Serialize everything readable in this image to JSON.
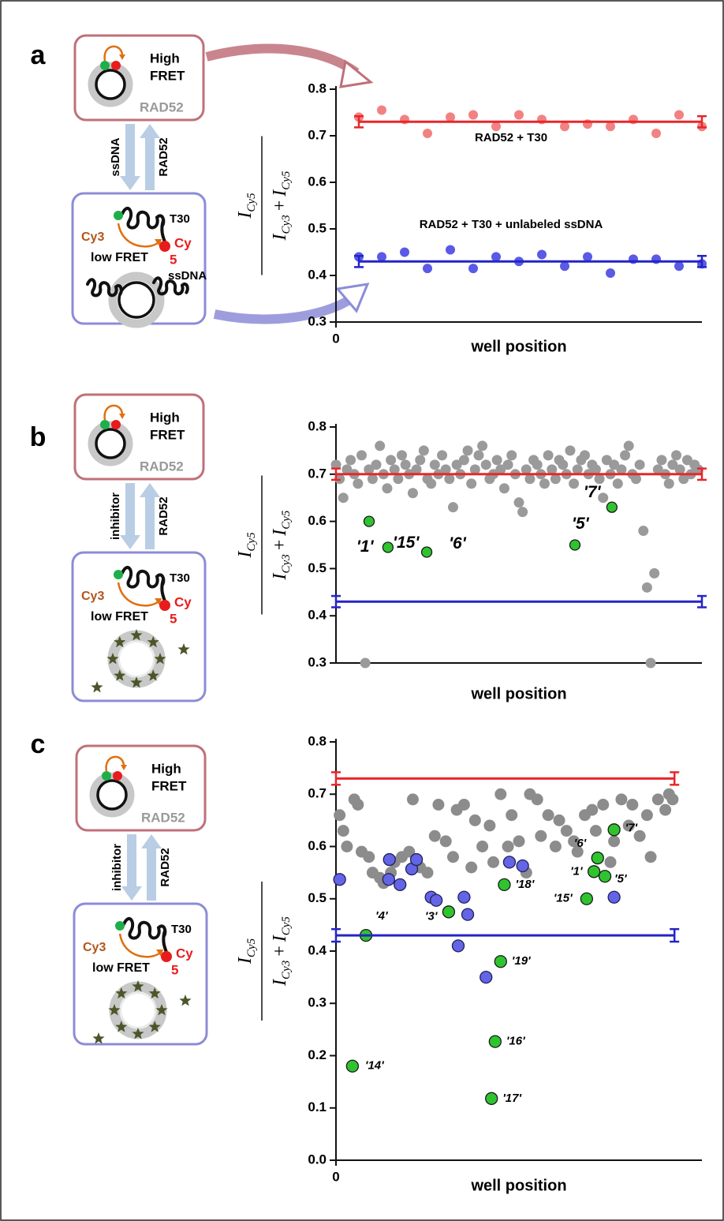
{
  "schematics": [
    {
      "top": {
        "line1": "High",
        "line2": "FRET",
        "protein": "RAD52"
      },
      "arrow_down": "ssDNA",
      "arrow_up": "RAD52",
      "bottom": {
        "strand": "T30",
        "donor": "Cy3",
        "acceptor": [
          "Cy",
          "5"
        ],
        "state": "low FRET",
        "extra": "ssDNA"
      }
    },
    {
      "top": {
        "line1": "High",
        "line2": "FRET",
        "protein": "RAD52"
      },
      "arrow_down": "inhibitor",
      "arrow_up": "RAD52",
      "bottom": {
        "strand": "T30",
        "donor": "Cy3",
        "acceptor": [
          "Cy",
          "5"
        ],
        "state": "low FRET"
      }
    },
    {
      "top": {
        "line1": "High",
        "line2": "FRET",
        "protein": "RAD52"
      },
      "arrow_down": "inhibitor",
      "arrow_up": "RAD52",
      "bottom": {
        "strand": "T30",
        "donor": "Cy3",
        "acceptor": [
          "Cy",
          "5"
        ],
        "state": "low FRET"
      }
    }
  ],
  "chart_data": [
    {
      "type": "scatter",
      "panel": "a",
      "xlabel": "well position",
      "ylabel": {
        "numerator": [
          "I",
          "Cy5"
        ],
        "denominator": [
          "I",
          "Cy3",
          "+",
          "I",
          "Cy5"
        ]
      },
      "xlim": [
        0,
        100
      ],
      "xticks": [
        0
      ],
      "ylim": [
        0.3,
        0.8
      ],
      "yticks": [
        0.3,
        0.4,
        0.5,
        0.6,
        0.7,
        0.8
      ],
      "series": [
        {
          "color": "#f28282",
          "x": [
            6.25,
            12.5,
            18.75,
            25,
            31.25,
            37.5,
            43.75,
            50,
            56.25,
            62.5,
            68.75,
            75,
            81.25,
            87.5,
            93.75,
            100
          ],
          "values": [
            0.74,
            0.755,
            0.735,
            0.705,
            0.74,
            0.745,
            0.72,
            0.745,
            0.735,
            0.72,
            0.725,
            0.72,
            0.735,
            0.705,
            0.745,
            0.72
          ]
        },
        {
          "color": "#5a5ae6",
          "x": [
            6.25,
            12.5,
            18.75,
            25,
            31.25,
            37.5,
            43.75,
            50,
            56.25,
            62.5,
            68.75,
            75,
            81.25,
            87.5,
            93.75,
            100
          ],
          "values": [
            0.44,
            0.44,
            0.45,
            0.415,
            0.455,
            0.415,
            0.44,
            0.43,
            0.445,
            0.42,
            0.44,
            0.405,
            0.435,
            0.435,
            0.42,
            0.425
          ]
        }
      ],
      "reference_lines": [
        {
          "color": "#e8262a",
          "value": 0.73,
          "error": 0.012,
          "x": [
            6.25,
            100
          ]
        },
        {
          "color": "#2424c8",
          "value": 0.43,
          "error": 0.012,
          "x": [
            6.25,
            100
          ]
        }
      ],
      "annotations": [
        "RAD52 + T30",
        "RAD52 + T30 + unlabeled ssDNA"
      ]
    },
    {
      "type": "scatter",
      "panel": "b",
      "xlabel": "well position",
      "ylabel": {
        "numerator": [
          "I",
          "Cy5"
        ],
        "denominator": [
          "I",
          "Cy3",
          "+",
          "I",
          "Cy5"
        ]
      },
      "xlim": [
        0,
        100
      ],
      "ylim": [
        0.3,
        0.8
      ],
      "yticks": [
        0.3,
        0.4,
        0.5,
        0.6,
        0.7,
        0.8
      ],
      "series": [
        {
          "color": "#9a9a9a",
          "x": [
            0,
            1,
            2,
            3,
            4,
            5,
            6,
            7,
            8,
            9,
            10,
            11,
            12,
            13,
            14,
            15,
            16,
            17,
            18,
            19,
            20,
            21,
            22,
            23,
            24,
            25,
            26,
            27,
            28,
            29,
            30,
            31,
            32,
            33,
            34,
            35,
            36,
            37,
            38,
            39,
            40,
            41,
            42,
            43,
            44,
            45,
            46,
            47,
            48,
            49,
            50,
            51,
            52,
            53,
            54,
            55,
            56,
            57,
            58,
            59,
            60,
            61,
            62,
            63,
            64,
            65,
            66,
            67,
            68,
            69,
            70,
            71,
            72,
            73,
            74,
            75,
            76,
            77,
            78,
            79,
            80,
            81,
            82,
            83,
            84,
            85,
            86,
            87,
            88,
            89,
            90,
            91,
            92,
            93,
            94,
            95,
            96,
            97,
            98,
            99
          ],
          "values": [
            0.72,
            0.69,
            0.65,
            0.71,
            0.73,
            0.7,
            0.68,
            0.74,
            0.3,
            0.71,
            0.69,
            0.72,
            0.76,
            0.7,
            0.67,
            0.73,
            0.71,
            0.69,
            0.74,
            0.72,
            0.7,
            0.66,
            0.71,
            0.73,
            0.75,
            0.69,
            0.68,
            0.72,
            0.7,
            0.74,
            0.71,
            0.69,
            0.63,
            0.72,
            0.7,
            0.73,
            0.75,
            0.68,
            0.71,
            0.74,
            0.76,
            0.72,
            0.69,
            0.7,
            0.73,
            0.71,
            0.67,
            0.72,
            0.74,
            0.7,
            0.64,
            0.62,
            0.71,
            0.69,
            0.73,
            0.72,
            0.7,
            0.68,
            0.74,
            0.71,
            0.69,
            0.73,
            0.72,
            0.7,
            0.75,
            0.68,
            0.71,
            0.73,
            0.74,
            0.7,
            0.72,
            0.71,
            0.69,
            0.65,
            0.73,
            0.7,
            0.72,
            0.68,
            0.71,
            0.74,
            0.76,
            0.7,
            0.69,
            0.72,
            0.58,
            0.46,
            0.3,
            0.49,
            0.71,
            0.73,
            0.7,
            0.68,
            0.72,
            0.74,
            0.71,
            0.69,
            0.73,
            0.7,
            0.72,
            0.71
          ]
        },
        {
          "color": "#2fc42f",
          "outline": "#1a1a1a",
          "x": [
            9.05,
            14.2,
            24.8,
            65.3,
            75.4
          ],
          "values": [
            0.6,
            0.545,
            0.535,
            0.55,
            0.63
          ],
          "point_labels": [
            "'15'",
            "'1'",
            "'6'",
            "'5'",
            "'7'"
          ]
        }
      ],
      "reference_lines": [
        {
          "color": "#e8262a",
          "value": 0.7,
          "error": 0.012,
          "x": [
            0,
            100
          ]
        },
        {
          "color": "#2424c8",
          "value": 0.43,
          "error": 0.012,
          "x": [
            0,
            100
          ]
        }
      ]
    },
    {
      "type": "scatter",
      "panel": "c",
      "xlabel": "well position",
      "ylabel": {
        "numerator": [
          "I",
          "Cy5"
        ],
        "denominator": [
          "I",
          "Cy3",
          "+",
          "I",
          "Cy5"
        ]
      },
      "xlim": [
        0,
        100
      ],
      "xticks": [
        0
      ],
      "ylim": [
        0,
        0.8
      ],
      "yticks": [
        {
          "value": 0,
          "label": "0.0"
        },
        0.1,
        0.2,
        0.3,
        0.4,
        0.5,
        0.6,
        0.7,
        0.8
      ],
      "series": [
        {
          "color": "#8c8c8c",
          "x": [
            1,
            2,
            3,
            5,
            6,
            7,
            9,
            10,
            12,
            13,
            15,
            16,
            18,
            20,
            21,
            23,
            25,
            27,
            28,
            30,
            32,
            33,
            35,
            37,
            38,
            40,
            42,
            43,
            45,
            47,
            48,
            50,
            52,
            53,
            55,
            56,
            58,
            60,
            61,
            63,
            65,
            66,
            68,
            70,
            71,
            73,
            75,
            76,
            78,
            80,
            81,
            83,
            85,
            86,
            88,
            90,
            91,
            92
          ],
          "values": [
            0.66,
            0.63,
            0.6,
            0.69,
            0.68,
            0.59,
            0.58,
            0.55,
            0.54,
            0.53,
            0.55,
            0.57,
            0.58,
            0.59,
            0.69,
            0.56,
            0.55,
            0.62,
            0.68,
            0.61,
            0.58,
            0.67,
            0.68,
            0.56,
            0.65,
            0.6,
            0.64,
            0.57,
            0.7,
            0.6,
            0.66,
            0.61,
            0.55,
            0.7,
            0.69,
            0.62,
            0.66,
            0.6,
            0.65,
            0.63,
            0.61,
            0.59,
            0.66,
            0.67,
            0.63,
            0.68,
            0.57,
            0.61,
            0.69,
            0.64,
            0.68,
            0.62,
            0.66,
            0.58,
            0.69,
            0.67,
            0.7,
            0.69
          ]
        },
        {
          "color": "#6464e6",
          "outline": "#20205a",
          "x": [
            1,
            14.6,
            14.4,
            17.5,
            20.7,
            22,
            26,
            27.4,
            35,
            36,
            33.4,
            41,
            47.4,
            51,
            76
          ],
          "values": [
            0.537,
            0.575,
            0.537,
            0.527,
            0.557,
            0.575,
            0.503,
            0.497,
            0.503,
            0.47,
            0.41,
            0.35,
            0.57,
            0.563,
            0.503
          ]
        },
        {
          "color": "#2fc42f",
          "outline": "#1a1a1a",
          "x": [
            4.5,
            8.2,
            30.8,
            43.5,
            42.5,
            45,
            46,
            68.5,
            70.5,
            71.5,
            73.5,
            76
          ],
          "values": [
            0.18,
            0.43,
            0.475,
            0.227,
            0.118,
            0.38,
            0.527,
            0.5,
            0.552,
            0.578,
            0.543,
            0.632
          ],
          "point_labels": [
            "'14'",
            "'4'",
            "'3'",
            "'16'",
            "'17'",
            "'19'",
            "'18'",
            "'15'",
            "'1'",
            "'6'",
            "'5'",
            "'7'"
          ]
        }
      ],
      "reference_lines": [
        {
          "color": "#e8262a",
          "value": 0.73,
          "error": 0.012,
          "x": [
            0,
            92.5
          ]
        },
        {
          "color": "#2424c8",
          "value": 0.43,
          "error": 0.012,
          "x": [
            0,
            92.5
          ]
        }
      ]
    }
  ]
}
